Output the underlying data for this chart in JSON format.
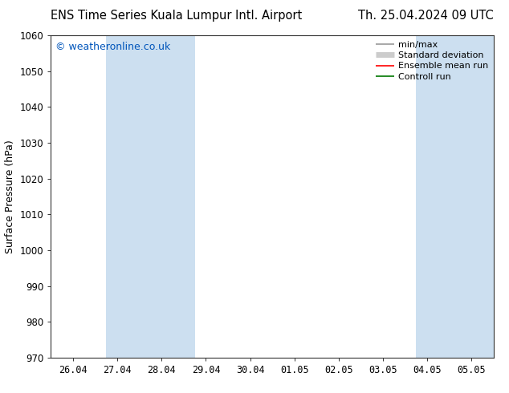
{
  "title_left": "ENS Time Series Kuala Lumpur Intl. Airport",
  "title_right": "Th. 25.04.2024 09 UTC",
  "ylabel": "Surface Pressure (hPa)",
  "watermark": "© weatheronline.co.uk",
  "watermark_color": "#0055bb",
  "ylim": [
    970,
    1060
  ],
  "yticks": [
    970,
    980,
    990,
    1000,
    1010,
    1020,
    1030,
    1040,
    1050,
    1060
  ],
  "xtick_labels": [
    "26.04",
    "27.04",
    "28.04",
    "29.04",
    "30.04",
    "01.05",
    "02.05",
    "03.05",
    "04.05",
    "05.05"
  ],
  "xtick_positions": [
    0,
    1,
    2,
    3,
    4,
    5,
    6,
    7,
    8,
    9
  ],
  "xlim": [
    -0.5,
    9.5
  ],
  "shaded_bands": [
    {
      "x_start": 0.75,
      "x_end": 2.75,
      "color": "#ccdff0"
    },
    {
      "x_start": 7.75,
      "x_end": 9.5,
      "color": "#ccdff0"
    }
  ],
  "legend_entries": [
    {
      "label": "min/max",
      "color": "#999999",
      "linestyle": "-",
      "linewidth": 1.2,
      "type": "line"
    },
    {
      "label": "Standard deviation",
      "color": "#cccccc",
      "linestyle": "-",
      "linewidth": 5,
      "type": "line"
    },
    {
      "label": "Ensemble mean run",
      "color": "#ff0000",
      "linestyle": "-",
      "linewidth": 1.2,
      "type": "line"
    },
    {
      "label": "Controll run",
      "color": "#007700",
      "linestyle": "-",
      "linewidth": 1.2,
      "type": "line"
    }
  ],
  "bg_color": "#ffffff",
  "plot_bg_color": "#ffffff",
  "spine_color": "#333333",
  "tick_color": "#333333",
  "font_size_title": 10.5,
  "font_size_axis": 9,
  "font_size_ticks": 8.5,
  "font_size_legend": 8,
  "font_size_watermark": 9
}
